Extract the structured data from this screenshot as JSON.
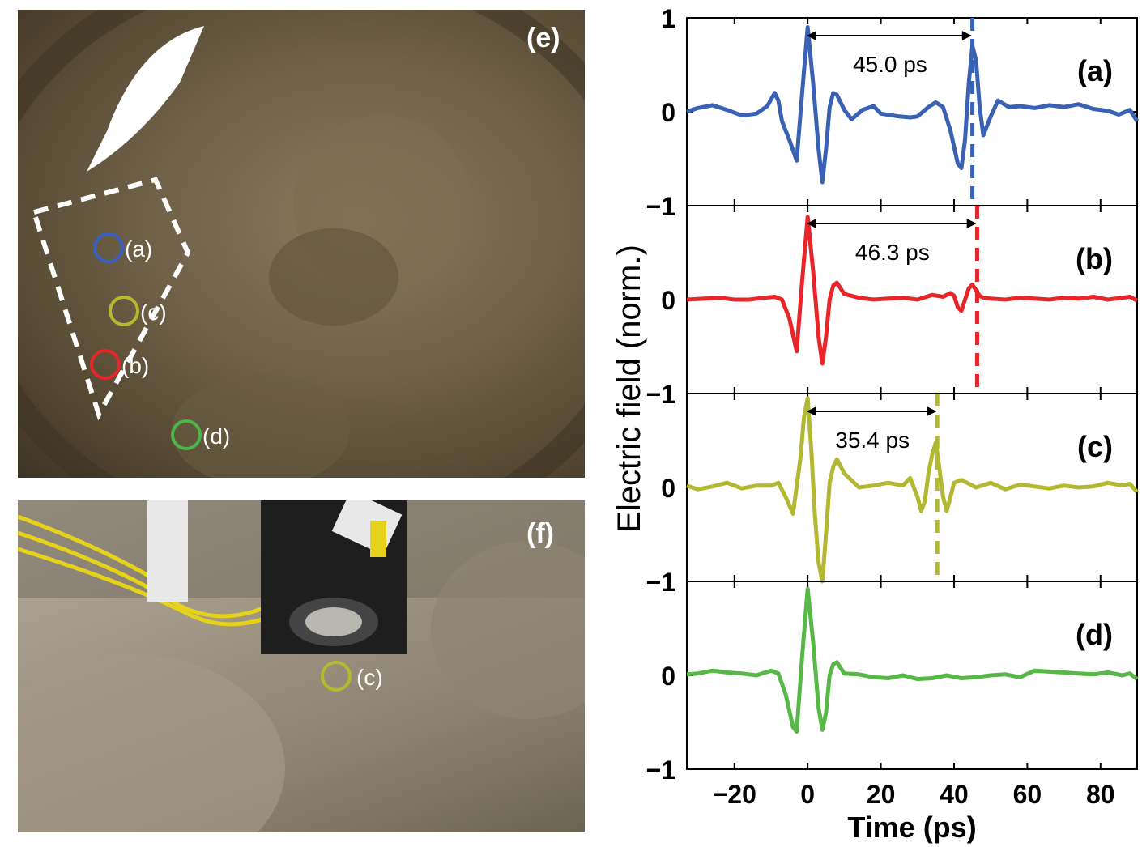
{
  "photos": {
    "e": {
      "label": "(e)",
      "spots": [
        {
          "label": "(a)",
          "color": "#3b5fc0"
        },
        {
          "label": "(c)",
          "color": "#b5b92e"
        },
        {
          "label": "(b)",
          "color": "#e8262a"
        },
        {
          "label": "(d)",
          "color": "#4cb648"
        }
      ]
    },
    "f": {
      "label": "(f)",
      "spots": [
        {
          "label": "(c)",
          "color": "#b5b92e"
        }
      ]
    }
  },
  "chart_data": {
    "type": "line",
    "xlabel": "Time (ps)",
    "ylabel": "Electric field (norm.)",
    "xlim": [
      -33,
      90
    ],
    "ylim": [
      -1,
      1
    ],
    "xticks": [
      -20,
      0,
      20,
      40,
      60,
      80
    ],
    "yticks": [
      -1,
      0,
      1
    ],
    "panels": [
      {
        "label": "(a)",
        "color": "#3a62b4",
        "x": [
          -33,
          -30,
          -26,
          -22,
          -18,
          -14,
          -11,
          -9,
          -8,
          -7,
          -5,
          -3,
          -1.5,
          0,
          1.5,
          3,
          4,
          5,
          6,
          7,
          8,
          10,
          12,
          15,
          18,
          20,
          25,
          28,
          30,
          33,
          35,
          37,
          39,
          41,
          42,
          43,
          44,
          45,
          46,
          47,
          48,
          50,
          52,
          55,
          58,
          62,
          66,
          70,
          74,
          78,
          82,
          85,
          88,
          90
        ],
        "y": [
          0,
          0.04,
          0.07,
          0.02,
          -0.04,
          -0.02,
          0.06,
          0.2,
          0.12,
          -0.1,
          -0.3,
          -0.52,
          0.2,
          0.9,
          0.3,
          -0.4,
          -0.75,
          -0.4,
          0.05,
          0.2,
          0.18,
          0.02,
          -0.08,
          0.02,
          0.06,
          -0.02,
          -0.05,
          -0.06,
          -0.05,
          0.05,
          0.1,
          0.05,
          -0.2,
          -0.55,
          -0.6,
          -0.3,
          0.3,
          0.7,
          0.55,
          0.05,
          -0.25,
          -0.05,
          0.12,
          0.05,
          0.06,
          0.04,
          0.07,
          0.05,
          0.08,
          0.03,
          0.01,
          -0.03,
          0.02,
          -0.1
        ],
        "annotation": "45.0 ps",
        "marker_x": 45.0
      },
      {
        "label": "(b)",
        "color": "#e8262a",
        "x": [
          -33,
          -28,
          -24,
          -20,
          -16,
          -12,
          -9,
          -7,
          -5,
          -3,
          -1.5,
          0,
          1.5,
          3,
          4,
          5,
          6,
          7,
          8,
          10,
          14,
          18,
          22,
          26,
          30,
          34,
          37,
          39,
          40,
          41,
          42,
          43,
          44,
          45,
          46,
          47,
          48,
          50,
          54,
          58,
          62,
          66,
          70,
          74,
          78,
          82,
          86,
          88,
          90
        ],
        "y": [
          0,
          0.01,
          0.02,
          0,
          0,
          0.02,
          0.03,
          0,
          -0.2,
          -0.55,
          0.2,
          0.88,
          0.3,
          -0.4,
          -0.68,
          -0.4,
          0,
          0.15,
          0.18,
          0.06,
          0.02,
          0,
          0.01,
          0.02,
          0,
          0.05,
          0.03,
          0.07,
          0.04,
          -0.08,
          -0.12,
          0,
          0.12,
          0.16,
          0.1,
          0.04,
          0.02,
          0.01,
          0,
          0.02,
          0.01,
          0,
          0.02,
          0.01,
          0.03,
          0,
          0.02,
          0.03,
          -0.01
        ],
        "annotation": "46.3 ps",
        "marker_x": 46.3
      },
      {
        "label": "(c)",
        "color": "#b3b832",
        "x": [
          -33,
          -30,
          -26,
          -22,
          -18,
          -14,
          -10,
          -8,
          -6,
          -4,
          -2,
          -1,
          0,
          1,
          2,
          3,
          4,
          5,
          6,
          7,
          8,
          10,
          14,
          18,
          22,
          26,
          28,
          30,
          31,
          32,
          33,
          34,
          35,
          36,
          37,
          38,
          39,
          40,
          42,
          46,
          50,
          54,
          58,
          62,
          66,
          70,
          74,
          78,
          82,
          86,
          88,
          90
        ],
        "y": [
          0.02,
          -0.02,
          0.01,
          0.05,
          -0.01,
          0.02,
          0.02,
          0.05,
          -0.1,
          -0.28,
          0.3,
          0.75,
          0.95,
          0.4,
          -0.3,
          -0.8,
          -1,
          -0.5,
          0.05,
          0.22,
          0.3,
          0.15,
          0,
          0.02,
          0.05,
          0.02,
          0.1,
          -0.1,
          -0.25,
          -0.15,
          0.15,
          0.35,
          0.48,
          0.2,
          -0.1,
          -0.25,
          -0.1,
          0.05,
          0.08,
          0,
          0.05,
          -0.02,
          0.03,
          0.01,
          -0.01,
          0.02,
          0,
          0.01,
          0.05,
          0.02,
          0.04,
          -0.05
        ],
        "annotation": "35.4 ps",
        "marker_x": 35.4
      },
      {
        "label": "(d)",
        "color": "#57b847",
        "x": [
          -33,
          -30,
          -26,
          -22,
          -18,
          -14,
          -10,
          -8,
          -6,
          -4,
          -3,
          -1.5,
          0,
          1.5,
          3,
          4,
          5,
          6,
          7,
          8,
          10,
          14,
          18,
          22,
          26,
          30,
          34,
          38,
          42,
          46,
          50,
          54,
          58,
          62,
          66,
          70,
          74,
          78,
          82,
          86,
          88,
          90
        ],
        "y": [
          0.01,
          0.02,
          0.05,
          0.03,
          0.02,
          0,
          0.05,
          0.02,
          -0.2,
          -0.55,
          -0.6,
          0.2,
          0.92,
          0.35,
          -0.35,
          -0.58,
          -0.4,
          0,
          0.12,
          0.14,
          0.02,
          0.01,
          -0.02,
          -0.03,
          0,
          -0.04,
          -0.03,
          0,
          -0.03,
          -0.02,
          0,
          0.01,
          -0.02,
          0.05,
          0.04,
          0.03,
          0.02,
          0.01,
          0.03,
          0,
          0.02,
          -0.04
        ]
      }
    ]
  }
}
